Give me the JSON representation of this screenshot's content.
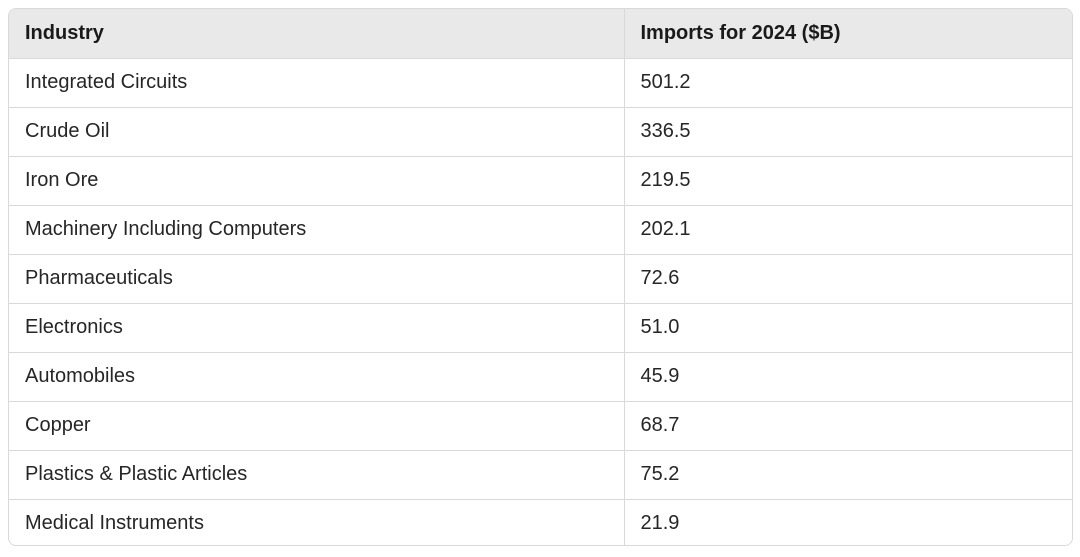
{
  "table": {
    "headers": [
      "Industry",
      "Imports for 2024 ($B)"
    ],
    "rows": [
      [
        "Integrated Circuits",
        "501.2"
      ],
      [
        "Crude Oil",
        "336.5"
      ],
      [
        "Iron Ore",
        "219.5"
      ],
      [
        "Machinery Including Computers",
        "202.1"
      ],
      [
        "Pharmaceuticals",
        "72.6"
      ],
      [
        "Electronics",
        "51.0"
      ],
      [
        "Automobiles",
        "45.9"
      ],
      [
        "Copper",
        "68.7"
      ],
      [
        "Plastics & Plastic Articles",
        "75.2"
      ],
      [
        "Medical Instruments",
        "21.9"
      ]
    ]
  }
}
